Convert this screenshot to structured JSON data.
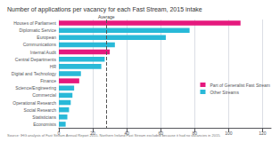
{
  "chart_data": {
    "type": "bar",
    "orientation": "horizontal",
    "title": "Number of applications per vacancy for each Fast Stream, 2015 intake",
    "categories": [
      "Houses of Parliament",
      "Diplomatic Service",
      "European",
      "Communications",
      "Internal Audit",
      "Central Departments",
      "HR",
      "Digital and Technology",
      "Finance",
      "Science/Engineering",
      "Commercial",
      "Operational Research",
      "Social Research",
      "Statisticians",
      "Economists"
    ],
    "series": [
      {
        "name": "Part of Generalist Fast Stream",
        "color": "#e5197d",
        "values": [
          107,
          null,
          null,
          null,
          30,
          null,
          null,
          null,
          12,
          null,
          null,
          null,
          null,
          null,
          null
        ]
      },
      {
        "name": "Other Streams",
        "color": "#29b9d8",
        "values": [
          null,
          77,
          63,
          33,
          null,
          27,
          25,
          13,
          null,
          9,
          8,
          7,
          6,
          5,
          4
        ]
      }
    ],
    "reference_lines": [
      {
        "value": 28,
        "label": "Average",
        "line_style": "dashed"
      }
    ],
    "xlim": [
      0,
      125
    ],
    "xticks": [
      0,
      20,
      40,
      60,
      80,
      100,
      120
    ],
    "grid": true,
    "legend": "right",
    "source": "Source: IHG analysis of Fast Stream Annual Report 2015. Northern Ireland Fast Stream excluded because it had no vacancies in 2015."
  }
}
